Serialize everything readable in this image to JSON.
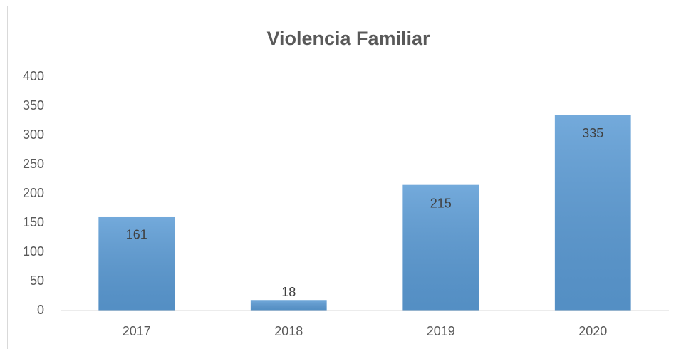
{
  "chart_data": {
    "type": "bar",
    "title": "Violencia Familiar",
    "categories": [
      "2017",
      "2018",
      "2019",
      "2020"
    ],
    "values": [
      161,
      18,
      215,
      335
    ],
    "color": "#5b9bd5",
    "ylim": [
      0,
      400
    ],
    "yticks": [
      0,
      50,
      100,
      150,
      200,
      250,
      300,
      350,
      400
    ],
    "grid": false,
    "data_labels": true
  }
}
